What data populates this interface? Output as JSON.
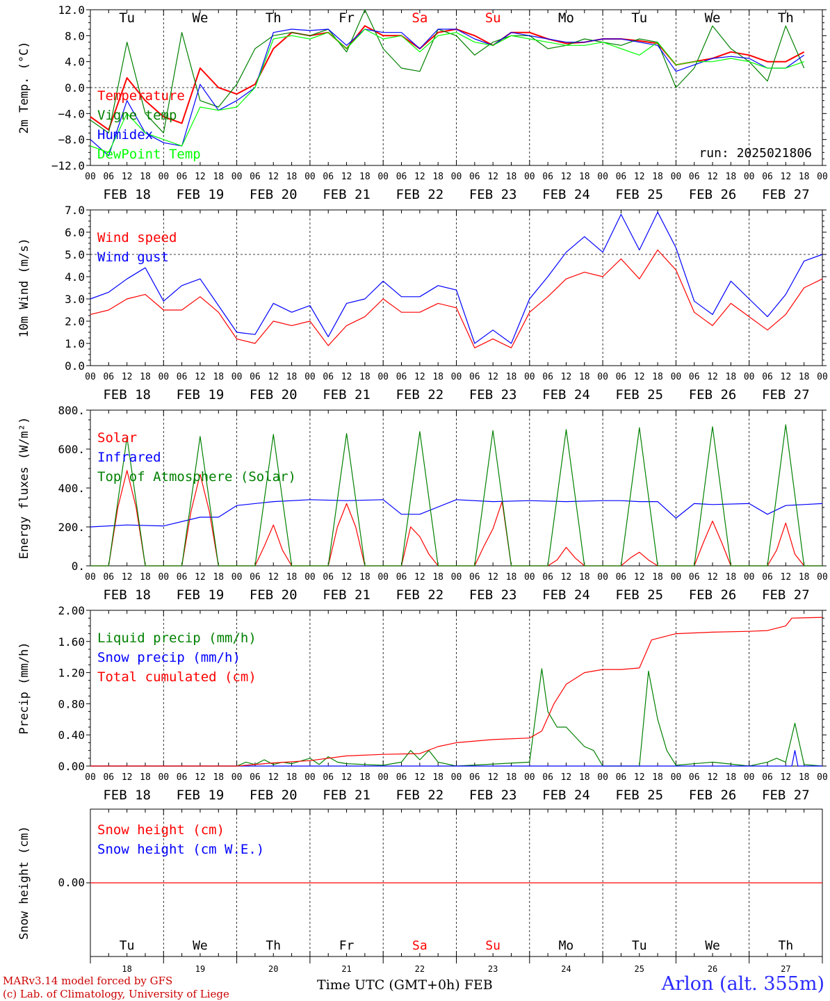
{
  "meta": {
    "run_label": "run: 2025021806",
    "footer_model": "MARv3.14 model forced by GFS",
    "footer_lab": "(c) Lab. of Climatology, University of Liege",
    "footer_axis": "Time UTC (GMT+0h) FEB",
    "footer_station": "Arlon (alt. 355m)"
  },
  "time": {
    "hour_ticks": [
      "00",
      "06",
      "12",
      "18"
    ],
    "end_tick": "00",
    "dates": [
      "FEB 18",
      "FEB 19",
      "FEB 20",
      "FEB 21",
      "FEB 22",
      "FEB 23",
      "FEB 24",
      "FEB 25",
      "FEB 26",
      "FEB 27"
    ],
    "day_names": [
      "Tu",
      "We",
      "Th",
      "Fr",
      "Sa",
      "Su",
      "Mo",
      "Tu",
      "We",
      "Th"
    ],
    "day_colors": [
      "#000000",
      "#000000",
      "#000000",
      "#000000",
      "#ff0000",
      "#ff0000",
      "#000000",
      "#000000",
      "#000000",
      "#000000"
    ],
    "day_numbers": [
      "18",
      "19",
      "20",
      "21",
      "22",
      "23",
      "24",
      "25",
      "26",
      "27"
    ]
  },
  "chart_data": [
    {
      "type": "line",
      "ylabel": "2m Temp. (°C)",
      "ylim": [
        -12,
        12
      ],
      "yticks": [
        "12.0",
        "8.0",
        "4.0",
        "0.0",
        "−4.0",
        "−8.0",
        "−12.0"
      ],
      "reference_line": 0,
      "series": [
        {
          "name": "Temperature",
          "color": "#ff0000",
          "x": [
            0,
            6,
            12,
            18,
            24,
            30,
            36,
            42,
            48,
            54,
            60,
            66,
            72,
            78,
            84,
            90,
            96,
            102,
            108,
            114,
            120,
            126,
            132,
            138,
            144,
            150,
            156,
            162,
            168,
            174,
            180,
            186,
            192,
            198,
            204,
            210,
            216,
            222,
            228,
            234
          ],
          "y": [
            -4.5,
            -6.5,
            1.5,
            -2,
            -4.5,
            -5.5,
            3,
            0,
            -1,
            0.5,
            6,
            8.5,
            8,
            8.5,
            6,
            9.5,
            8,
            8,
            6,
            8.5,
            9,
            8,
            6.5,
            8.5,
            8.5,
            7.5,
            6.8,
            7,
            7.5,
            7.5,
            7.2,
            6.8,
            3.5,
            4,
            4.5,
            5.5,
            5,
            4,
            4,
            5.5
          ]
        },
        {
          "name": "Vigne temp",
          "color": "#008000",
          "x": [
            0,
            6,
            12,
            18,
            24,
            30,
            36,
            42,
            48,
            54,
            60,
            66,
            72,
            78,
            84,
            90,
            96,
            102,
            108,
            114,
            120,
            126,
            132,
            138,
            144,
            150,
            156,
            162,
            168,
            174,
            180,
            186,
            192,
            198,
            204,
            210,
            216,
            222,
            228,
            234
          ],
          "y": [
            -5,
            -7,
            7,
            -4,
            -7,
            8.5,
            -2,
            -3,
            0.5,
            6,
            8,
            8.5,
            8,
            9,
            5.5,
            12,
            6,
            3,
            2.5,
            9,
            8,
            5,
            7,
            8,
            8,
            6,
            6.5,
            7.5,
            7,
            6.5,
            7.5,
            7,
            0,
            3,
            9.5,
            6,
            4,
            1,
            9.5,
            3
          ]
        },
        {
          "name": "Humidex",
          "color": "#0000ff",
          "x": [
            0,
            6,
            12,
            18,
            24,
            30,
            36,
            42,
            48,
            54,
            60,
            66,
            72,
            78,
            84,
            90,
            96,
            102,
            108,
            114,
            120,
            126,
            132,
            138,
            144,
            150,
            156,
            162,
            168,
            174,
            180,
            186,
            192,
            198,
            204,
            210,
            216,
            222,
            228,
            234
          ],
          "y": [
            -8,
            -10.5,
            -2,
            -7,
            -8.5,
            -9,
            0.5,
            -3.5,
            -2,
            0,
            8.5,
            9,
            8.8,
            9,
            6.5,
            9,
            8.5,
            8.5,
            6,
            9,
            9,
            7.5,
            6.5,
            8.5,
            8,
            7.5,
            7,
            7,
            7.5,
            7.5,
            7,
            6.5,
            2.5,
            3.5,
            4.5,
            4.8,
            4.5,
            3,
            3,
            5
          ]
        },
        {
          "name": "DewPoint Temp",
          "color": "#00ff00",
          "x": [
            0,
            6,
            12,
            18,
            24,
            30,
            36,
            42,
            48,
            54,
            60,
            66,
            72,
            78,
            84,
            90,
            96,
            102,
            108,
            114,
            120,
            126,
            132,
            138,
            144,
            150,
            156,
            162,
            168,
            174,
            180,
            186,
            192,
            198,
            204,
            210,
            216,
            222,
            228,
            234
          ],
          "y": [
            -9,
            -10,
            -4,
            -7,
            -8,
            -9,
            -3,
            -3.5,
            -3,
            0,
            7.5,
            8,
            7.5,
            8.5,
            6,
            9,
            7.5,
            8,
            5.5,
            8,
            8.5,
            7,
            6.5,
            8,
            7.5,
            7,
            6.5,
            6.5,
            7,
            6,
            5,
            7,
            3.5,
            4,
            4,
            4.5,
            4,
            3,
            3,
            4
          ]
        }
      ]
    },
    {
      "type": "line",
      "ylabel": "10m Wind (m/s)",
      "ylim": [
        0,
        7
      ],
      "yticks": [
        "7.0",
        "6.0",
        "5.0",
        "4.0",
        "3.0",
        "2.0",
        "1.0",
        "0.0"
      ],
      "reference_line": 5,
      "series": [
        {
          "name": "Wind speed",
          "color": "#ff0000",
          "x": [
            0,
            6,
            12,
            18,
            24,
            30,
            36,
            42,
            48,
            54,
            60,
            66,
            72,
            78,
            84,
            90,
            96,
            102,
            108,
            114,
            120,
            126,
            132,
            138,
            144,
            150,
            156,
            162,
            168,
            174,
            180,
            186,
            192,
            198,
            204,
            210,
            216,
            222,
            228,
            234,
            240
          ],
          "y": [
            2.3,
            2.5,
            3,
            3.2,
            2.5,
            2.5,
            3.1,
            2.4,
            1.2,
            1,
            2,
            1.8,
            2,
            0.9,
            1.8,
            2.2,
            3,
            2.4,
            2.4,
            2.8,
            2.6,
            0.8,
            1.2,
            0.8,
            2.4,
            3.1,
            3.9,
            4.2,
            4,
            4.8,
            3.9,
            5.2,
            4.3,
            2.4,
            1.8,
            2.8,
            2.2,
            1.6,
            2.3,
            3.5,
            3.9
          ]
        },
        {
          "name": "Wind gust",
          "color": "#0000ff",
          "x": [
            0,
            6,
            12,
            18,
            24,
            30,
            36,
            42,
            48,
            54,
            60,
            66,
            72,
            78,
            84,
            90,
            96,
            102,
            108,
            114,
            120,
            126,
            132,
            138,
            144,
            150,
            156,
            162,
            168,
            174,
            180,
            186,
            192,
            198,
            204,
            210,
            216,
            222,
            228,
            234,
            240
          ],
          "y": [
            3,
            3.3,
            3.9,
            4.4,
            2.9,
            3.6,
            3.9,
            2.7,
            1.5,
            1.4,
            2.8,
            2.4,
            2.7,
            1.3,
            2.8,
            3,
            3.8,
            3.1,
            3.1,
            3.6,
            3.4,
            1,
            1.6,
            1,
            3,
            4,
            5.1,
            5.8,
            5.1,
            6.8,
            5.2,
            6.9,
            5.3,
            2.9,
            2.3,
            3.8,
            3,
            2.2,
            3.2,
            4.7,
            5
          ]
        }
      ]
    },
    {
      "type": "line",
      "ylabel": "Energy fluxes (W/m²)",
      "ylim": [
        0,
        800
      ],
      "yticks": [
        "800.",
        "600.",
        "400.",
        "200.",
        "0."
      ],
      "reference_line": null,
      "series": [
        {
          "name": "Solar",
          "color": "#ff0000",
          "x": [
            0,
            6,
            9,
            12,
            15,
            18,
            24,
            30,
            33,
            36,
            39,
            42,
            48,
            54,
            57,
            60,
            63,
            66,
            72,
            78,
            81,
            84,
            87,
            90,
            96,
            102,
            105,
            108,
            111,
            114,
            120,
            126,
            129,
            132,
            135,
            138,
            144,
            150,
            153,
            156,
            159,
            162,
            168,
            174,
            177,
            180,
            183,
            186,
            192,
            198,
            201,
            204,
            207,
            210,
            216,
            222,
            225,
            228,
            231,
            234,
            240
          ],
          "y": [
            0,
            0,
            300,
            490,
            300,
            0,
            0,
            0,
            280,
            470,
            280,
            0,
            0,
            0,
            100,
            210,
            80,
            0,
            0,
            0,
            200,
            320,
            200,
            0,
            0,
            0,
            200,
            150,
            60,
            0,
            0,
            0,
            100,
            190,
            330,
            0,
            0,
            0,
            30,
            95,
            40,
            0,
            0,
            0,
            40,
            70,
            30,
            0,
            0,
            0,
            120,
            230,
            120,
            0,
            0,
            0,
            80,
            220,
            60,
            0,
            0
          ]
        },
        {
          "name": "Infrared",
          "color": "#0000ff",
          "x": [
            0,
            12,
            24,
            36,
            42,
            48,
            60,
            72,
            84,
            96,
            102,
            108,
            120,
            132,
            144,
            156,
            168,
            174,
            180,
            186,
            192,
            198,
            204,
            216,
            222,
            228,
            234,
            240
          ],
          "y": [
            200,
            210,
            205,
            250,
            250,
            310,
            330,
            340,
            335,
            340,
            265,
            265,
            340,
            330,
            335,
            330,
            335,
            335,
            330,
            330,
            245,
            320,
            315,
            320,
            265,
            310,
            315,
            320
          ]
        },
        {
          "name": "Top of Atmosphere (Solar)",
          "color": "#008000",
          "x": [
            0,
            6,
            12,
            18,
            24,
            30,
            36,
            42,
            48,
            54,
            60,
            66,
            72,
            78,
            84,
            90,
            96,
            102,
            108,
            114,
            120,
            126,
            132,
            138,
            144,
            150,
            156,
            162,
            168,
            174,
            180,
            186,
            192,
            198,
            204,
            210,
            216,
            222,
            228,
            234,
            240
          ],
          "y": [
            0,
            0,
            660,
            0,
            0,
            0,
            665,
            0,
            0,
            0,
            675,
            0,
            0,
            0,
            680,
            0,
            0,
            0,
            690,
            0,
            0,
            0,
            695,
            0,
            0,
            0,
            700,
            0,
            0,
            0,
            710,
            0,
            0,
            0,
            715,
            0,
            0,
            0,
            725,
            0,
            0
          ]
        }
      ]
    },
    {
      "type": "line",
      "ylabel": "Precip (mm/h)",
      "ylim": [
        0,
        2
      ],
      "yticks": [
        "2.00",
        "1.60",
        "1.20",
        "0.80",
        "0.40",
        "0.00"
      ],
      "reference_line": null,
      "series": [
        {
          "name": "Liquid precip (mm/h)",
          "color": "#008000",
          "x": [
            0,
            48,
            51,
            54,
            57,
            60,
            63,
            66,
            72,
            75,
            78,
            81,
            84,
            90,
            96,
            102,
            105,
            108,
            111,
            114,
            120,
            144,
            148,
            150,
            153,
            156,
            162,
            165,
            168,
            174,
            180,
            183,
            186,
            189,
            192,
            204,
            216,
            222,
            225,
            228,
            231,
            234,
            240
          ],
          "y": [
            0,
            0,
            0.05,
            0.02,
            0.08,
            0.02,
            0.05,
            0.03,
            0.1,
            0.02,
            0.12,
            0.05,
            0.03,
            0.02,
            0.01,
            0.05,
            0.2,
            0.08,
            0.2,
            0.05,
            0,
            0.05,
            1.25,
            0.7,
            0.5,
            0.5,
            0.25,
            0.2,
            0,
            0,
            0,
            1.22,
            0.6,
            0.2,
            0.01,
            0.05,
            0,
            0.05,
            0.1,
            0.05,
            0.55,
            0.02,
            0
          ]
        },
        {
          "name": "Snow precip (mm/h)",
          "color": "#0000ff",
          "x": [
            0,
            230,
            231,
            232,
            240
          ],
          "y": [
            0,
            0,
            0.2,
            0,
            0
          ]
        },
        {
          "name": "Total cumulated (cm)",
          "color": "#ff0000",
          "x": [
            0,
            48,
            60,
            72,
            84,
            96,
            108,
            114,
            120,
            132,
            144,
            148,
            152,
            156,
            162,
            168,
            174,
            180,
            184,
            192,
            204,
            216,
            222,
            228,
            230,
            240
          ],
          "y": [
            0,
            0,
            0.04,
            0.07,
            0.13,
            0.15,
            0.16,
            0.25,
            0.3,
            0.34,
            0.36,
            0.45,
            0.8,
            1.05,
            1.2,
            1.24,
            1.24,
            1.26,
            1.62,
            1.7,
            1.72,
            1.73,
            1.74,
            1.8,
            1.9,
            1.91
          ]
        }
      ]
    },
    {
      "type": "line",
      "ylabel": "Snow height (cm)",
      "ylim": [
        -1,
        1
      ],
      "yticks": [
        "0.00"
      ],
      "reference_line": null,
      "series": [
        {
          "name": "Snow height (cm)",
          "color": "#ff0000",
          "x": [
            0,
            240
          ],
          "y": [
            0,
            0
          ]
        },
        {
          "name": "Snow height (cm W.E.)",
          "color": "#0000ff",
          "x": [],
          "y": []
        }
      ]
    }
  ]
}
